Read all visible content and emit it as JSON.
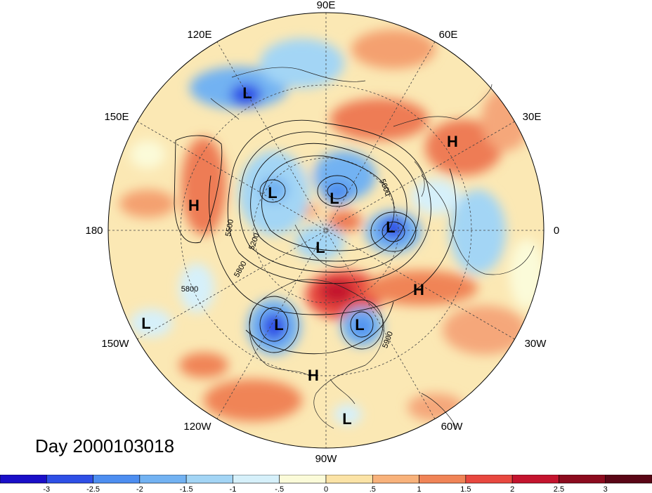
{
  "chart_data": {
    "type": "heatmap",
    "projection": "north-polar-stereographic",
    "title": "Day 2000103018",
    "longitude_labels": [
      "90E",
      "60E",
      "30E",
      "0",
      "30W",
      "60W",
      "90W",
      "120W",
      "150W",
      "180",
      "150E",
      "120E"
    ],
    "contour_labels": [
      "5500",
      "5200",
      "5600",
      "5800",
      "5900",
      "5800"
    ],
    "pressure_systems": [
      {
        "type": "L"
      },
      {
        "type": "L"
      },
      {
        "type": "L"
      },
      {
        "type": "L"
      },
      {
        "type": "L"
      },
      {
        "type": "L"
      },
      {
        "type": "L"
      },
      {
        "type": "L"
      },
      {
        "type": "L"
      },
      {
        "type": "H"
      },
      {
        "type": "H"
      },
      {
        "type": "H"
      },
      {
        "type": "H"
      }
    ],
    "colorbar": {
      "tick_labels": [
        "-3",
        "-2.5",
        "-2",
        "-1.5",
        "-1",
        "-.5",
        "0",
        ".5",
        "1",
        "1.5",
        "2",
        "2.5",
        "3"
      ],
      "colors": [
        "#1a0fc8",
        "#2e4fe6",
        "#4d8ef0",
        "#72b2f2",
        "#a3d5f5",
        "#d6f0fa",
        "#fbfbd9",
        "#fbe3a6",
        "#f8b27b",
        "#f08457",
        "#e8483f",
        "#c4142e",
        "#8c0b1e",
        "#5a0616"
      ]
    }
  }
}
